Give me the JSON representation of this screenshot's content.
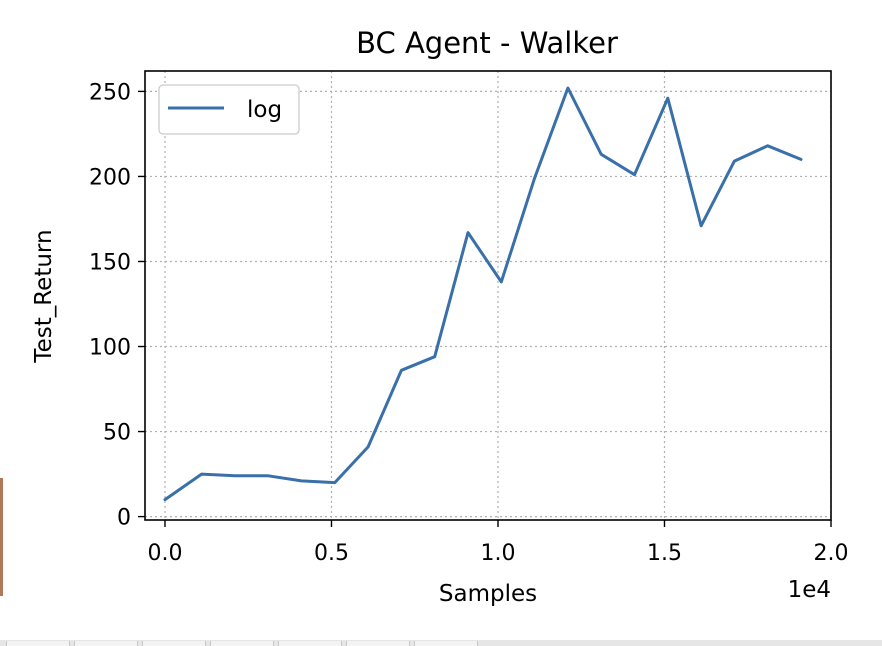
{
  "chart_data": {
    "type": "line",
    "title": "BC Agent - Walker",
    "xlabel": "Samples",
    "ylabel": "Test_Return",
    "x_offset_label": "1e4",
    "xlim": [
      -0.06,
      2.0
    ],
    "ylim": [
      -2,
      262
    ],
    "xticks": [
      0.0,
      0.5,
      1.0,
      1.5,
      2.0
    ],
    "xtick_labels": [
      "0.0",
      "0.5",
      "1.0",
      "1.5",
      "2.0"
    ],
    "yticks": [
      0,
      50,
      100,
      150,
      200,
      250
    ],
    "ytick_labels": [
      "0",
      "50",
      "100",
      "150",
      "200",
      "250"
    ],
    "grid": true,
    "legend_position": "upper-left",
    "series": [
      {
        "name": "log",
        "color": "#3a70aa",
        "x": [
          0.0,
          0.11,
          0.21,
          0.31,
          0.41,
          0.51,
          0.61,
          0.71,
          0.81,
          0.91,
          1.01,
          1.11,
          1.21,
          1.31,
          1.41,
          1.51,
          1.61,
          1.71,
          1.81,
          1.91
        ],
        "y": [
          10,
          25,
          24,
          24,
          21,
          20,
          41,
          86,
          94,
          167,
          138,
          199,
          252,
          213,
          201,
          246,
          171,
          209,
          218,
          210
        ]
      }
    ]
  }
}
